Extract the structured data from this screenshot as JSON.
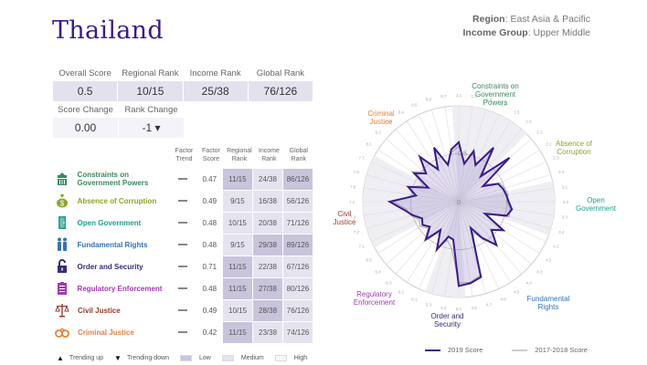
{
  "header": {
    "country": "Thailand",
    "region_label": "Region",
    "region_value": "East Asia & Pacific",
    "income_label": "Income Group",
    "income_value": "Upper Middle"
  },
  "summary": {
    "overall_score_label": "Overall Score",
    "overall_score": "0.5",
    "regional_rank_label": "Regional Rank",
    "regional_rank": "10/15",
    "income_rank_label": "Income Rank",
    "income_rank": "25/38",
    "global_rank_label": "Global Rank",
    "global_rank": "76/126",
    "score_change_label": "Score Change",
    "score_change": "0.00",
    "rank_change_label": "Rank Change",
    "rank_change": "-1 ▾"
  },
  "factors_table": {
    "headers": {
      "trend": "Factor Trend",
      "score": "Factor Score",
      "regional": "Regional Rank",
      "income": "Income Rank",
      "global": "Global Rank"
    },
    "rows": [
      {
        "name": "Constraints on Government Powers",
        "icon": "building-icon",
        "color": "#3a8a5e",
        "trend": "—",
        "score": "0.47",
        "regional": "11/15",
        "regional_level": "low",
        "income": "24/38",
        "income_level": "medium",
        "global": "86/126",
        "global_level": "low"
      },
      {
        "name": "Absence of Corruption",
        "icon": "money-bag-icon",
        "color": "#8aa52a",
        "trend": "—",
        "score": "0.49",
        "regional": "9/15",
        "regional_level": "medium",
        "income": "16/38",
        "income_level": "medium",
        "global": "56/126",
        "global_level": "medium"
      },
      {
        "name": "Open Government",
        "icon": "door-icon",
        "color": "#1f9f8a",
        "trend": "—",
        "score": "0.48",
        "regional": "10/15",
        "regional_level": "medium",
        "income": "20/38",
        "income_level": "medium",
        "global": "71/126",
        "global_level": "medium"
      },
      {
        "name": "Fundamental Rights",
        "icon": "people-icon",
        "color": "#3572b5",
        "trend": "—",
        "score": "0.48",
        "regional": "9/15",
        "regional_level": "medium",
        "income": "29/38",
        "income_level": "low",
        "global": "89/126",
        "global_level": "low"
      },
      {
        "name": "Order and Security",
        "icon": "lock-icon",
        "color": "#3b2a78",
        "trend": "—",
        "score": "0.71",
        "regional": "11/15",
        "regional_level": "low",
        "income": "22/38",
        "income_level": "medium",
        "global": "67/126",
        "global_level": "medium"
      },
      {
        "name": "Regulatory Enforcement",
        "icon": "clipboard-icon",
        "color": "#a23ab0",
        "trend": "—",
        "score": "0.48",
        "regional": "11/15",
        "regional_level": "low",
        "income": "27/38",
        "income_level": "low",
        "global": "80/126",
        "global_level": "medium"
      },
      {
        "name": "Civil Justice",
        "icon": "scales-icon",
        "color": "#9b3a2a",
        "trend": "—",
        "score": "0.49",
        "regional": "10/15",
        "regional_level": "medium",
        "income": "28/38",
        "income_level": "low",
        "global": "76/126",
        "global_level": "medium"
      },
      {
        "name": "Criminal Justice",
        "icon": "handcuffs-icon",
        "color": "#e8803a",
        "trend": "—",
        "score": "0.42",
        "regional": "11/15",
        "regional_level": "low",
        "income": "23/38",
        "income_level": "medium",
        "global": "74/126",
        "global_level": "medium"
      }
    ]
  },
  "legend_bottom": {
    "trending_up": "Trending up",
    "trending_down": "Trending down",
    "low": "Low",
    "medium": "Medium",
    "high": "High"
  },
  "chart_data": {
    "type": "radar",
    "title": "",
    "center_label": "0",
    "ring_label": "0.5",
    "rlim": [
      0,
      1
    ],
    "factor_labels": [
      {
        "name": "Constraints on Government Powers",
        "color": "#3a8a5e"
      },
      {
        "name": "Absence of Corruption",
        "color": "#8aa52a"
      },
      {
        "name": "Open Government",
        "color": "#1f9f8a"
      },
      {
        "name": "Fundamental Rights",
        "color": "#3572b5"
      },
      {
        "name": "Order and Security",
        "color": "#3b2a78"
      },
      {
        "name": "Regulatory Enforcement",
        "color": "#a23ab0"
      },
      {
        "name": "Civil Justice",
        "color": "#9b3a2a"
      },
      {
        "name": "Criminal Justice",
        "color": "#e8803a"
      }
    ],
    "categories": [
      "1.1",
      "1.2",
      "1.3",
      "1.4",
      "1.5",
      "1.6",
      "2.1",
      "2.2",
      "2.3",
      "2.4",
      "3.1",
      "3.2",
      "3.3",
      "3.4",
      "4.1",
      "4.2",
      "4.3",
      "4.4",
      "4.5",
      "4.6",
      "4.7",
      "4.8",
      "5.1",
      "5.2",
      "5.3",
      "6.1",
      "6.2",
      "6.3",
      "6.4",
      "6.5",
      "7.1",
      "7.2",
      "7.3",
      "7.4",
      "7.5",
      "7.6",
      "7.7",
      "8.1",
      "8.2",
      "8.3",
      "8.4",
      "8.5",
      "8.6",
      "8.7"
    ],
    "series": [
      {
        "name": "2019 Score",
        "color": "#3b1a8c",
        "values": [
          0.62,
          0.4,
          0.55,
          0.42,
          0.67,
          0.35,
          0.7,
          0.3,
          0.45,
          0.48,
          0.5,
          0.52,
          0.56,
          0.52,
          0.3,
          0.55,
          0.45,
          0.6,
          0.45,
          0.3,
          0.82,
          0.86,
          0.88,
          0.4,
          0.38,
          0.55,
          0.35,
          0.52,
          0.4,
          0.45,
          0.42,
          0.5,
          0.58,
          0.72,
          0.45,
          0.55,
          0.35,
          0.55,
          0.45,
          0.62,
          0.4,
          0.62,
          0.4,
          0.55
        ]
      },
      {
        "name": "2017-2018 Score",
        "color": "#bbbbbb",
        "values": [
          0.58,
          0.42,
          0.52,
          0.44,
          0.63,
          0.38,
          0.66,
          0.33,
          0.47,
          0.5,
          0.52,
          0.5,
          0.54,
          0.55,
          0.32,
          0.57,
          0.45,
          0.58,
          0.47,
          0.35,
          0.8,
          0.85,
          0.85,
          0.5,
          0.42,
          0.52,
          0.38,
          0.55,
          0.42,
          0.48,
          0.45,
          0.52,
          0.55,
          0.68,
          0.48,
          0.55,
          0.4,
          0.58,
          0.48,
          0.6,
          0.42,
          0.58,
          0.42,
          0.52
        ]
      }
    ]
  }
}
